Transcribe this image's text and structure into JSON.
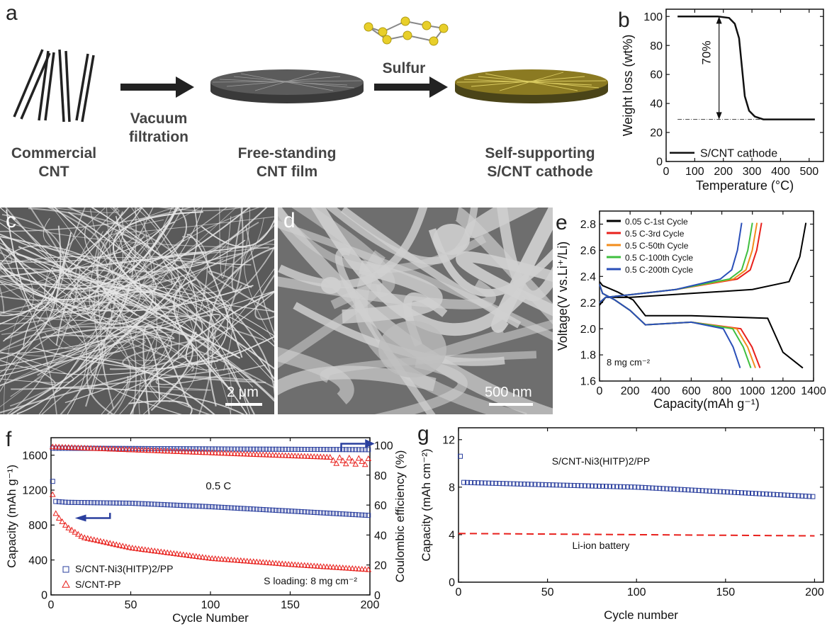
{
  "panel_letters": {
    "a": "a",
    "b": "b",
    "c": "c",
    "d": "d",
    "e": "e",
    "f": "f",
    "g": "g"
  },
  "schematic": {
    "commercial_cnt": [
      "Commercial",
      "CNT"
    ],
    "vacuum": [
      "Vacuum",
      "filtration"
    ],
    "free_standing": [
      "Free-standing",
      "CNT film"
    ],
    "sulfur": "Sulfur",
    "self_supporting": [
      "Self-supporting",
      "S/CNT cathode"
    ]
  },
  "sem": {
    "c_scale": "2 μm",
    "d_scale": "500 nm"
  },
  "chart_data": [
    {
      "panel": "b",
      "type": "line",
      "xlabel": "Temperature (°C)",
      "ylabel": "Weight loss (wt%)",
      "xlim": [
        0,
        550
      ],
      "ylim": [
        0,
        105
      ],
      "xticks": [
        0,
        100,
        200,
        300,
        400,
        500
      ],
      "yticks": [
        0,
        20,
        40,
        60,
        80,
        100
      ],
      "annotation": "70%",
      "legend": "S/CNT cathode",
      "series": [
        {
          "name": "S/CNT cathode",
          "x": [
            40,
            100,
            180,
            220,
            240,
            255,
            265,
            275,
            290,
            310,
            340,
            400,
            450,
            520
          ],
          "y": [
            100,
            100,
            100,
            99,
            95,
            85,
            65,
            45,
            35,
            31,
            29,
            29,
            29,
            29
          ]
        }
      ]
    },
    {
      "panel": "e",
      "type": "line",
      "xlabel": "Capacity(mAh g⁻¹)",
      "ylabel": "Voltage(V vs.Li⁺/Li)",
      "xlim": [
        0,
        1400
      ],
      "ylim": [
        1.6,
        2.9
      ],
      "xticks": [
        0,
        200,
        400,
        600,
        800,
        1000,
        1200,
        1400
      ],
      "yticks": [
        1.6,
        1.8,
        2.0,
        2.2,
        2.4,
        2.6,
        2.8
      ],
      "annotation": "8 mg cm⁻²",
      "series": [
        {
          "name": "0.05 C-1st Cycle",
          "color": "#000000",
          "discharge_end": 1330,
          "charge_end": 1350
        },
        {
          "name": "0.5 C-3rd Cycle",
          "color": "#e8201c",
          "discharge_end": 1050,
          "charge_end": 1060
        },
        {
          "name": "0.5 C-50th Cycle",
          "color": "#f28c1c",
          "discharge_end": 1020,
          "charge_end": 1030
        },
        {
          "name": "0.5 C-100th Cycle",
          "color": "#3fbf3f",
          "discharge_end": 990,
          "charge_end": 1000
        },
        {
          "name": "0.5 C-200th Cycle",
          "color": "#2a4fb8",
          "discharge_end": 920,
          "charge_end": 930
        }
      ]
    },
    {
      "panel": "f",
      "type": "scatter",
      "xlabel": "Cycle Number",
      "ylabel": "Capacity (mAh g⁻¹)",
      "y2label": "Coulombic efficiency (%)",
      "xlim": [
        0,
        200
      ],
      "ylim": [
        0,
        1800
      ],
      "y2lim": [
        0,
        105
      ],
      "xticks": [
        0,
        50,
        100,
        150,
        200
      ],
      "yticks": [
        0,
        400,
        800,
        1200,
        1600
      ],
      "y2ticks": [
        0,
        20,
        40,
        60,
        80,
        100
      ],
      "rate": "0.5 C",
      "loading": "S loading: 8 mg cm⁻²",
      "series": [
        {
          "name": "S/CNT-Ni3(HITP)2/PP",
          "color": "#2a3f9e",
          "capacity_x": [
            1,
            2,
            3,
            10,
            50,
            100,
            150,
            200
          ],
          "capacity_y": [
            1300,
            1170,
            1070,
            1060,
            1050,
            1010,
            960,
            910
          ],
          "ce_start": 98,
          "ce_end": 97
        },
        {
          "name": "S/CNT-PP",
          "color": "#e8201c",
          "capacity_x": [
            1,
            2,
            5,
            10,
            20,
            50,
            100,
            150,
            200
          ],
          "capacity_y": [
            1150,
            960,
            880,
            780,
            660,
            540,
            420,
            350,
            290
          ],
          "ce_start": 99,
          "ce_end": 91
        }
      ]
    },
    {
      "panel": "g",
      "type": "scatter",
      "xlabel": "Cycle number",
      "ylabel": "Capacity (mAh cm⁻²)",
      "xlim": [
        0,
        205
      ],
      "ylim": [
        0,
        13
      ],
      "xticks": [
        0,
        50,
        100,
        150,
        200
      ],
      "yticks": [
        0,
        4,
        8,
        12
      ],
      "series": [
        {
          "name": "S/CNT-Ni3(HITP)2/PP",
          "color": "#2a3f9e",
          "x": [
            1,
            2,
            3,
            50,
            100,
            150,
            200
          ],
          "y": [
            10.6,
            9.4,
            8.4,
            8.2,
            8.0,
            7.6,
            7.2
          ]
        },
        {
          "name": "Li-ion battery",
          "color": "#e8201c",
          "x": [
            0,
            200
          ],
          "y": [
            4.1,
            3.9
          ]
        }
      ]
    }
  ]
}
